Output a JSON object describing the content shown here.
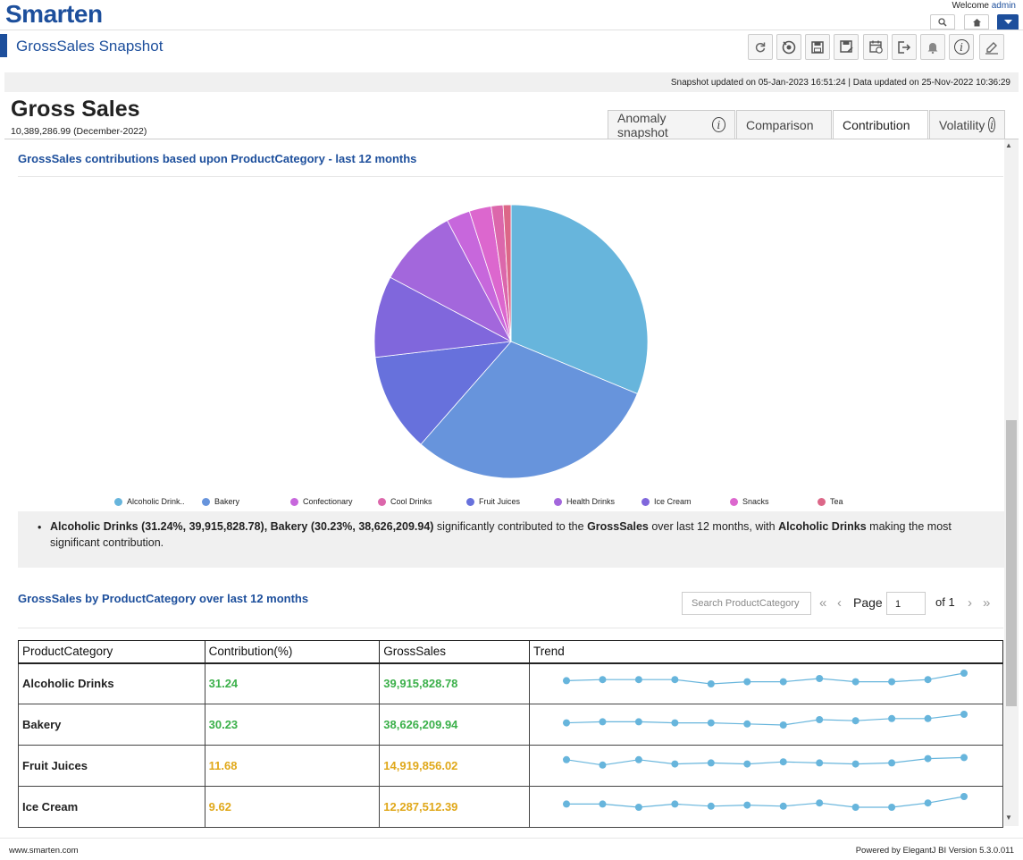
{
  "app": {
    "logo": "Smarten",
    "welcome_prefix": "Welcome ",
    "welcome_user": "admin"
  },
  "header": {
    "title": "GrossSales Snapshot"
  },
  "toolbar": {
    "icons": [
      "refresh-icon",
      "link-icon",
      "save-icon",
      "save-as-icon",
      "calendar-icon",
      "export-icon",
      "bell-icon",
      "info-icon",
      "edit-icon"
    ]
  },
  "infobar": {
    "text": "Snapshot updated on 05-Jan-2023 16:51:24   |   Data updated on 25-Nov-2022 10:36:29"
  },
  "page": {
    "title": "Gross Sales",
    "subtitle": "10,389,286.99 (December-2022)"
  },
  "tabs": [
    {
      "label": "Anomaly snapshot",
      "info": "i"
    },
    {
      "label": "Comparison"
    },
    {
      "label": "Contribution"
    },
    {
      "label": "Volatility",
      "info": "i"
    }
  ],
  "active_tab": "Contribution",
  "pie_section": {
    "title": "GrossSales contributions based upon ProductCategory - last 12 months"
  },
  "chart_data": [
    {
      "type": "pie",
      "title": "",
      "categories": [
        "Alcoholic Drinks",
        "Bakery",
        "Fruit Juices",
        "Ice Cream",
        "Health Drinks",
        "Confectionary",
        "Snacks",
        "Cool Drinks",
        "Tea"
      ],
      "values": [
        31.24,
        30.23,
        11.68,
        9.62,
        9.5,
        2.8,
        2.6,
        1.4,
        0.93
      ],
      "colors": [
        "#67b5dc",
        "#6794dc",
        "#6771dc",
        "#8067dc",
        "#a367dc",
        "#c767dc",
        "#dc67ce",
        "#dc67ab",
        "#dc6788"
      ],
      "legend_position": "bottom"
    },
    {
      "type": "line",
      "title": "Trend",
      "x": [
        1,
        2,
        3,
        4,
        5,
        6,
        7,
        8,
        9,
        10,
        11,
        12
      ],
      "series": [
        {
          "values": [
            0.3,
            0.4,
            0.4,
            0.4,
            0.0,
            0.2,
            0.2,
            0.5,
            0.2,
            0.2,
            0.4,
            1.0
          ]
        },
        {
          "values": [
            0.2,
            0.3,
            0.3,
            0.2,
            0.2,
            0.1,
            0.0,
            0.5,
            0.4,
            0.6,
            0.6,
            1.0
          ]
        },
        {
          "values": [
            0.6,
            0.1,
            0.6,
            0.2,
            0.3,
            0.2,
            0.4,
            0.3,
            0.2,
            0.3,
            0.7,
            0.8
          ]
        },
        {
          "values": [
            0.3,
            0.3,
            0.0,
            0.3,
            0.1,
            0.2,
            0.1,
            0.4,
            0.0,
            0.0,
            0.4,
            1.0
          ]
        }
      ]
    }
  ],
  "legend": [
    {
      "label": "Alcoholic Drink..",
      "color": "#67b5dc"
    },
    {
      "label": "Bakery",
      "color": "#6794dc"
    },
    {
      "label": "Confectionary",
      "color": "#c767dc"
    },
    {
      "label": "Cool Drinks",
      "color": "#dc67ab"
    },
    {
      "label": "Fruit Juices",
      "color": "#6771dc"
    },
    {
      "label": "Health Drinks",
      "color": "#a367dc"
    },
    {
      "label": "Ice Cream",
      "color": "#8067dc"
    },
    {
      "label": "Snacks",
      "color": "#dc67ce"
    },
    {
      "label": "Tea",
      "color": "#dc6788"
    }
  ],
  "insight": {
    "p1": "Alcoholic Drinks (31.24%, 39,915,828.78), Bakery (30.23%, 38,626,209.94)",
    "p2": " significantly contributed to the ",
    "p3": "GrossSales",
    "p4": " over last 12 months, with ",
    "p5": "Alcoholic Drinks",
    "p6": " making the most significant contribution."
  },
  "table_section": {
    "title": "GrossSales by ProductCategory over last 12 months",
    "search_placeholder": "Search ProductCategory",
    "page_label": "Page",
    "page_value": "1",
    "page_of": "of 1"
  },
  "table": {
    "headers": [
      "ProductCategory",
      "Contribution(%)",
      "GrossSales",
      "Trend"
    ],
    "rows": [
      {
        "category": "Alcoholic Drinks",
        "contribution": "31.24",
        "sales": "39,915,828.78",
        "tone": "green"
      },
      {
        "category": "Bakery",
        "contribution": "30.23",
        "sales": "38,626,209.94",
        "tone": "green"
      },
      {
        "category": "Fruit Juices",
        "contribution": "11.68",
        "sales": "14,919,856.02",
        "tone": "yellow"
      },
      {
        "category": "Ice Cream",
        "contribution": "9.62",
        "sales": "12,287,512.39",
        "tone": "yellow"
      }
    ]
  },
  "footer": {
    "left": "www.smarten.com",
    "right": "Powered by ElegantJ BI Version 5.3.0.011"
  }
}
